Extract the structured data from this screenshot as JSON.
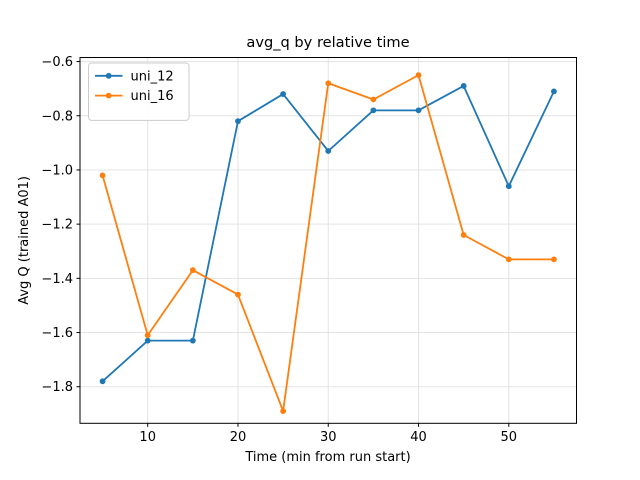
{
  "chart_data": {
    "type": "line",
    "title": "avg_q by relative time",
    "xlabel": "Time (min from run start)",
    "ylabel": "Avg Q (trained A01)",
    "x": [
      5,
      10,
      15,
      20,
      25,
      30,
      35,
      40,
      45,
      50,
      55
    ],
    "series": [
      {
        "name": "uni_12",
        "color": "#1f77b4",
        "values": [
          -1.78,
          -1.63,
          -1.63,
          -0.82,
          -0.72,
          -0.93,
          -0.78,
          -0.78,
          -0.69,
          -1.06,
          -0.71
        ]
      },
      {
        "name": "uni_16",
        "color": "#ff7f0e",
        "values": [
          -1.02,
          -1.61,
          -1.37,
          -1.46,
          -1.89,
          -0.68,
          -0.74,
          -0.65,
          -1.24,
          -1.33,
          -1.33
        ]
      }
    ],
    "xlim": [
      2.5,
      57.5
    ],
    "ylim": [
      -1.935,
      -0.585
    ],
    "xticks": [
      10,
      20,
      30,
      40,
      50
    ],
    "yticks": [
      -0.6,
      -0.8,
      -1.0,
      -1.2,
      -1.4,
      -1.6,
      -1.8
    ],
    "grid": true,
    "grid_color": "#e3e3e3",
    "spine_color": "#000000",
    "background": "#ffffff",
    "marker": "dot",
    "legend": {
      "position": "upper left",
      "entries": [
        "uni_12",
        "uni_16"
      ]
    }
  }
}
